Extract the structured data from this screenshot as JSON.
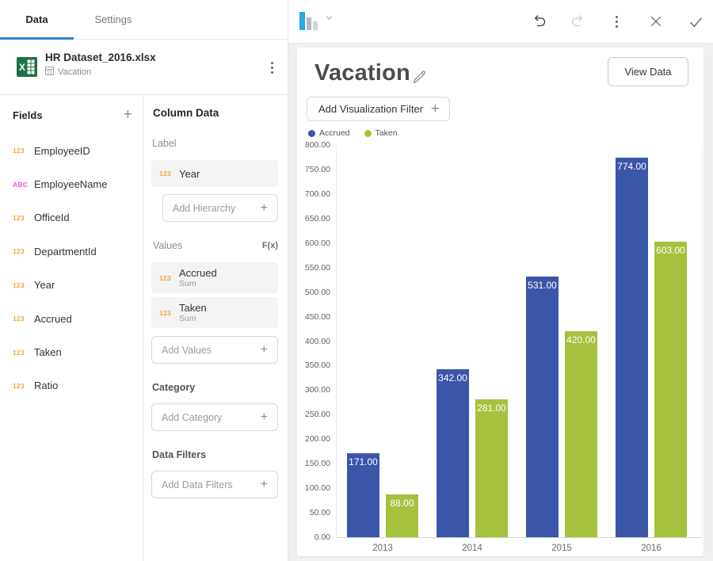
{
  "left_panel": {
    "tabs": [
      {
        "label": "Data",
        "active": true
      },
      {
        "label": "Settings",
        "active": false
      }
    ],
    "dataset": {
      "filename": "HR Dataset_2016.xlsx",
      "sheet": "Vacation"
    },
    "fields": {
      "title": "Fields",
      "add_icon": "+",
      "items": [
        {
          "type": "123",
          "label": "EmployeeID"
        },
        {
          "type": "ABC",
          "label": "EmployeeName"
        },
        {
          "type": "123",
          "label": "OfficeId"
        },
        {
          "type": "123",
          "label": "DepartmentId"
        },
        {
          "type": "123",
          "label": "Year"
        },
        {
          "type": "123",
          "label": "Accrued"
        },
        {
          "type": "123",
          "label": "Taken"
        },
        {
          "type": "123",
          "label": "Ratio"
        }
      ]
    },
    "column_data": {
      "title": "Column Data",
      "label_section": {
        "title": "Label",
        "chip": {
          "type": "123",
          "label": "Year"
        },
        "add_placeholder": "Add Hierarchy",
        "add_icon": "+"
      },
      "values_section": {
        "title": "Values",
        "fx_label": "F(x)",
        "chips": [
          {
            "type": "123",
            "label": "Accrued",
            "agg": "Sum"
          },
          {
            "type": "123",
            "label": "Taken",
            "agg": "Sum"
          }
        ],
        "add_placeholder": "Add Values",
        "add_icon": "+"
      },
      "category_section": {
        "title": "Category",
        "add_placeholder": "Add Category",
        "add_icon": "+"
      },
      "filters_section": {
        "title": "Data Filters",
        "add_placeholder": "Add Data Filters",
        "add_icon": "+"
      }
    }
  },
  "toolbar": {
    "chart_type_icon": "bar-chart-icon",
    "icons": [
      "undo-icon",
      "redo-icon",
      "more-icon",
      "close-icon",
      "confirm-icon"
    ],
    "redo_disabled": true
  },
  "main": {
    "title": "Vacation",
    "view_data_label": "View Data",
    "filter_button_label": "Add Visualization Filter",
    "filter_button_icon": "+"
  },
  "chart_data": {
    "type": "bar",
    "title": "Vacation",
    "categories": [
      "2013",
      "2014",
      "2015",
      "2016"
    ],
    "series": [
      {
        "name": "Accrued",
        "color": "#3b55a9",
        "values": [
          171,
          342,
          531,
          774
        ]
      },
      {
        "name": "Taken",
        "color": "#a5c13e",
        "values": [
          88,
          281,
          420,
          603
        ]
      }
    ],
    "ylim": [
      0,
      800
    ],
    "ytick_step": 50,
    "tick_format_decimals": 2,
    "value_label_format_decimals": 2,
    "legend_position": "top-left",
    "grid": false,
    "xlabel": "",
    "ylabel": ""
  },
  "colors": {
    "accent_blue": "#2a82c6",
    "series_accrued": "#3b55a9",
    "series_taken": "#a5c13e",
    "badge_number": "#f7a437",
    "badge_text": "#fa4fd5",
    "excel_green": "#1e7145",
    "page_bg": "#eef0f2"
  }
}
